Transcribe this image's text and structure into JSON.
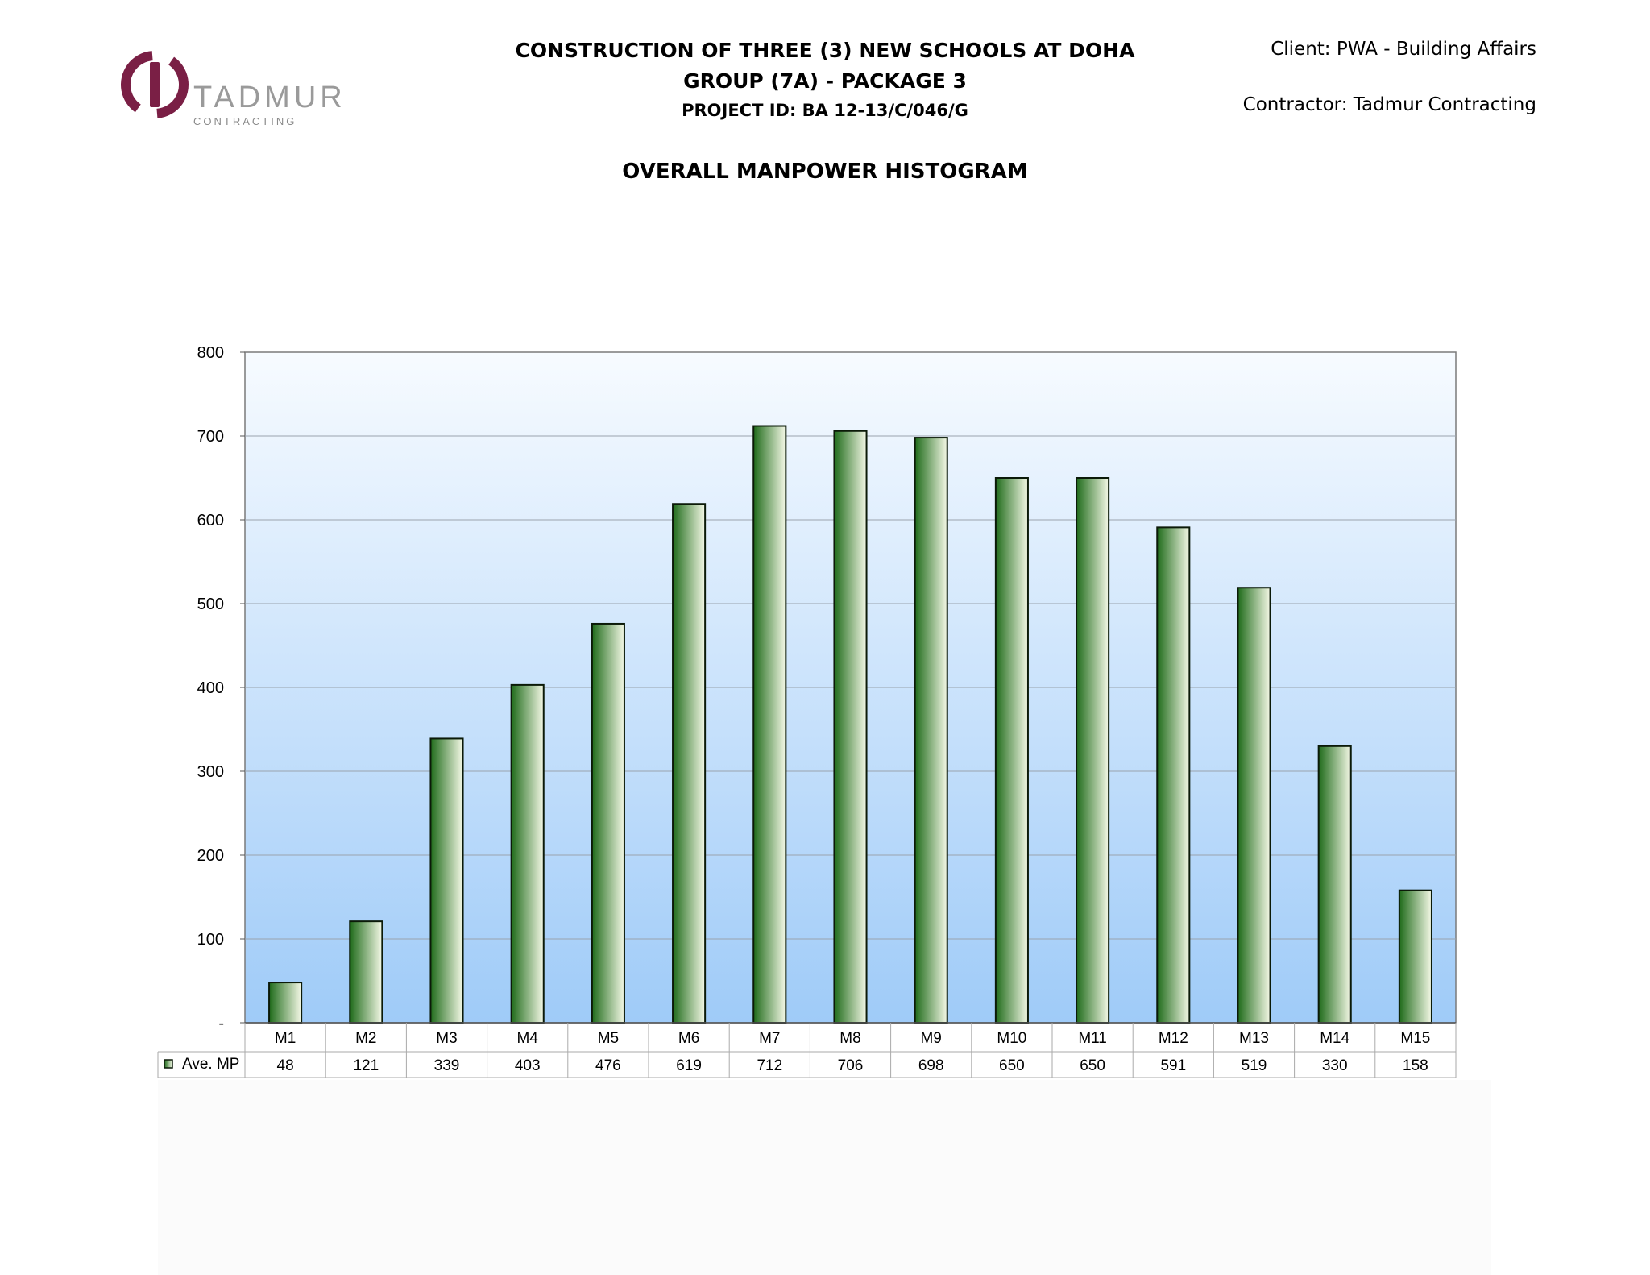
{
  "header": {
    "title_line1": "CONSTRUCTION OF THREE (3) NEW SCHOOLS AT DOHA",
    "title_line2": "GROUP (7A) - PACKAGE 3",
    "project_id": "PROJECT ID: BA 12-13/C/046/G",
    "client": "Client: PWA - Building Affairs",
    "contractor": "Contractor: Tadmur  Contracting"
  },
  "logo": {
    "name": "TADMUR",
    "tagline": "CONTRACTING",
    "color": "#7a1f45"
  },
  "chart_data": {
    "type": "bar",
    "title": "OVERALL MANPOWER HISTOGRAM",
    "categories": [
      "M1",
      "M2",
      "M3",
      "M4",
      "M5",
      "M6",
      "M7",
      "M8",
      "M9",
      "M10",
      "M11",
      "M12",
      "M13",
      "M14",
      "M15"
    ],
    "series": [
      {
        "name": "Ave. MP",
        "values": [
          48,
          121,
          339,
          403,
          476,
          619,
          712,
          706,
          698,
          650,
          650,
          591,
          519,
          330,
          158
        ]
      }
    ],
    "ylim": [
      0,
      800
    ],
    "yticks": [
      0,
      100,
      200,
      300,
      400,
      500,
      600,
      700,
      800
    ],
    "ytick_labels": [
      "-",
      "100",
      "200",
      "300",
      "400",
      "500",
      "600",
      "700",
      "800"
    ],
    "grid": true,
    "data_table": true,
    "colors": {
      "bar_dark": "#1f6b1a",
      "bar_light": "#f4f8e6",
      "plot_top": "#f7fbff",
      "plot_bottom": "#9fcbf8"
    }
  }
}
